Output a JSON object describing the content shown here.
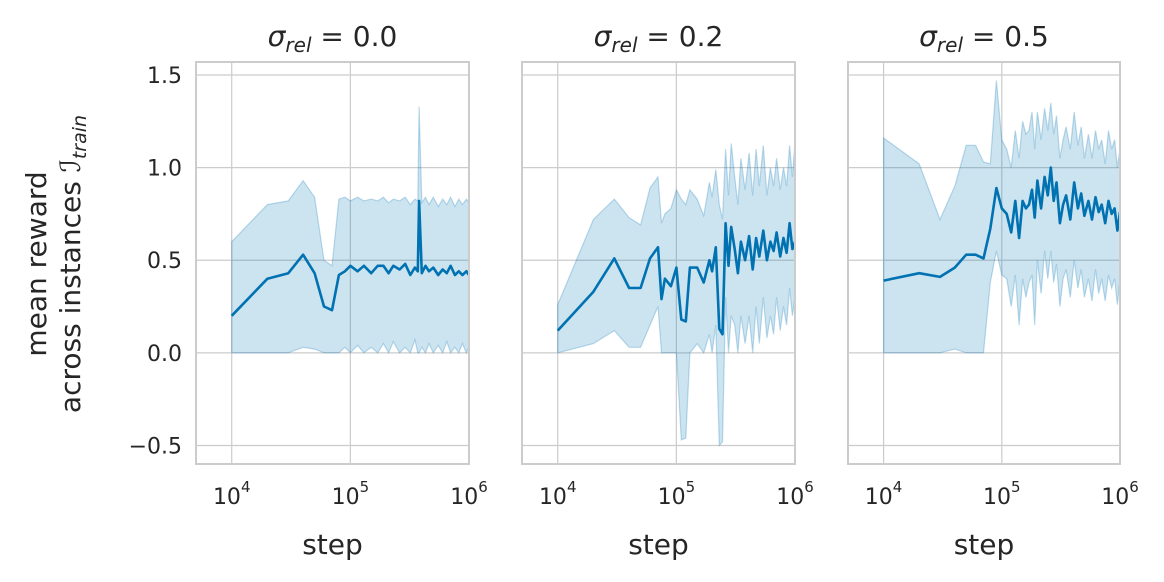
{
  "figure": {
    "ylabel_line1": "mean reward",
    "ylabel_line2_text": "across instances ",
    "ylabel_math_symbol": "ℐ",
    "ylabel_math_subscript": "train",
    "title_prefix": "σ",
    "title_subscript": "rel",
    "title_equals": " = ",
    "line_color": "#0072b2",
    "band_color": "#0072b2",
    "grid_color": "#cccccc",
    "spine_color": "#cccccc"
  },
  "chart_data": [
    {
      "type": "line",
      "title_value": "0.0",
      "xlabel": "step",
      "xscale": "log",
      "xlim": [
        5000,
        1000000
      ],
      "ylim": [
        -0.6,
        1.57
      ],
      "xticks": [
        {
          "base": "10",
          "exp": "4",
          "value": 10000
        },
        {
          "base": "10",
          "exp": "5",
          "value": 100000
        },
        {
          "base": "10",
          "exp": "6",
          "value": 1000000
        }
      ],
      "yticks": [
        {
          "label": "1.5",
          "value": 1.5
        },
        {
          "label": "1.0",
          "value": 1.0
        },
        {
          "label": "0.5",
          "value": 0.5
        },
        {
          "label": "0.0",
          "value": 0.0
        },
        {
          "label": "−0.5",
          "value": -0.5
        }
      ],
      "series": [
        {
          "x": [
            10000,
            20000,
            30000,
            40000,
            50000,
            60000,
            70000,
            80000,
            90000,
            100000,
            115000,
            130000,
            150000,
            170000,
            190000,
            210000,
            230000,
            260000,
            290000,
            320000,
            350000,
            370000,
            380000,
            400000,
            430000,
            460000,
            500000,
            550000,
            600000,
            650000,
            700000,
            760000,
            820000,
            880000,
            950000,
            1000000
          ],
          "y": [
            0.2,
            0.4,
            0.43,
            0.53,
            0.43,
            0.25,
            0.23,
            0.42,
            0.44,
            0.47,
            0.44,
            0.47,
            0.43,
            0.47,
            0.47,
            0.43,
            0.47,
            0.45,
            0.48,
            0.42,
            0.46,
            0.44,
            0.82,
            0.43,
            0.47,
            0.44,
            0.46,
            0.42,
            0.45,
            0.43,
            0.47,
            0.42,
            0.44,
            0.42,
            0.44,
            0.42
          ],
          "lower": [
            0.0,
            0.0,
            0.0,
            0.03,
            0.02,
            0.0,
            0.0,
            0.0,
            0.03,
            0.0,
            0.04,
            0.0,
            0.03,
            0.0,
            0.05,
            0.0,
            0.06,
            0.0,
            0.03,
            0.0,
            0.07,
            0.0,
            0.0,
            0.03,
            0.0,
            0.05,
            0.0,
            0.04,
            0.0,
            0.06,
            0.0,
            0.03,
            0.0,
            0.05,
            0.0,
            0.03
          ],
          "upper": [
            0.6,
            0.8,
            0.82,
            0.93,
            0.84,
            0.5,
            0.47,
            0.83,
            0.84,
            0.82,
            0.84,
            0.82,
            0.83,
            0.82,
            0.84,
            0.81,
            0.83,
            0.82,
            0.84,
            0.8,
            0.83,
            0.82,
            1.33,
            0.81,
            0.84,
            0.8,
            0.84,
            0.79,
            0.83,
            0.8,
            0.84,
            0.79,
            0.83,
            0.8,
            0.83,
            0.81
          ]
        }
      ]
    },
    {
      "type": "line",
      "title_value": "0.2",
      "xlabel": "step",
      "xscale": "log",
      "xlim": [
        5000,
        1000000
      ],
      "ylim": [
        -0.6,
        1.57
      ],
      "xticks": [
        {
          "base": "10",
          "exp": "4",
          "value": 10000
        },
        {
          "base": "10",
          "exp": "5",
          "value": 100000
        },
        {
          "base": "10",
          "exp": "6",
          "value": 1000000
        }
      ],
      "yticks": [
        {
          "label": "1.5",
          "value": 1.5
        },
        {
          "label": "1.0",
          "value": 1.0
        },
        {
          "label": "0.5",
          "value": 0.5
        },
        {
          "label": "0.0",
          "value": 0.0
        },
        {
          "label": "−0.5",
          "value": -0.5
        }
      ],
      "series": [
        {
          "x": [
            10000,
            20000,
            30000,
            40000,
            50000,
            60000,
            70000,
            75000,
            80000,
            90000,
            100000,
            110000,
            120000,
            130000,
            150000,
            170000,
            190000,
            200000,
            215000,
            230000,
            245000,
            260000,
            275000,
            290000,
            310000,
            330000,
            350000,
            380000,
            410000,
            440000,
            470000,
            500000,
            540000,
            580000,
            620000,
            660000,
            700000,
            750000,
            800000,
            850000,
            900000,
            950000,
            1000000
          ],
          "y": [
            0.12,
            0.33,
            0.51,
            0.35,
            0.35,
            0.51,
            0.57,
            0.29,
            0.4,
            0.36,
            0.46,
            0.18,
            0.17,
            0.46,
            0.46,
            0.38,
            0.5,
            0.44,
            0.57,
            0.13,
            0.1,
            0.7,
            0.47,
            0.68,
            0.56,
            0.43,
            0.6,
            0.5,
            0.63,
            0.45,
            0.62,
            0.52,
            0.66,
            0.5,
            0.6,
            0.55,
            0.65,
            0.52,
            0.62,
            0.54,
            0.7,
            0.56,
            0.6
          ],
          "lower": [
            0.0,
            0.05,
            0.12,
            0.03,
            0.03,
            0.15,
            0.25,
            0.0,
            0.0,
            0.0,
            0.0,
            -0.47,
            -0.46,
            0.0,
            0.05,
            0.0,
            0.1,
            0.0,
            0.15,
            -0.5,
            -0.48,
            0.3,
            0.0,
            0.2,
            0.15,
            0.0,
            0.2,
            0.05,
            0.2,
            0.0,
            0.25,
            0.05,
            0.3,
            0.08,
            0.2,
            0.1,
            0.3,
            0.12,
            0.25,
            0.15,
            0.35,
            0.2,
            0.3
          ],
          "upper": [
            0.26,
            0.72,
            0.83,
            0.73,
            0.69,
            0.89,
            0.95,
            0.7,
            0.75,
            0.78,
            0.88,
            0.83,
            0.8,
            0.88,
            0.83,
            0.74,
            0.92,
            0.84,
            0.99,
            0.8,
            0.72,
            1.1,
            0.85,
            1.13,
            0.95,
            0.8,
            1.05,
            0.88,
            1.08,
            0.85,
            1.1,
            0.9,
            1.12,
            0.85,
            1.0,
            0.9,
            1.05,
            0.88,
            1.0,
            0.9,
            1.12,
            0.95,
            1.14
          ]
        }
      ]
    },
    {
      "type": "line",
      "title_value": "0.5",
      "xlabel": "step",
      "xscale": "log",
      "xlim": [
        5000,
        1000000
      ],
      "ylim": [
        -0.6,
        1.57
      ],
      "xticks": [
        {
          "base": "10",
          "exp": "4",
          "value": 10000
        },
        {
          "base": "10",
          "exp": "5",
          "value": 100000
        },
        {
          "base": "10",
          "exp": "6",
          "value": 1000000
        }
      ],
      "yticks": [
        {
          "label": "1.5",
          "value": 1.5
        },
        {
          "label": "1.0",
          "value": 1.0
        },
        {
          "label": "0.5",
          "value": 0.5
        },
        {
          "label": "0.0",
          "value": 0.0
        },
        {
          "label": "−0.5",
          "value": -0.5
        }
      ],
      "series": [
        {
          "x": [
            10000,
            20000,
            30000,
            40000,
            50000,
            60000,
            70000,
            80000,
            90000,
            100000,
            110000,
            120000,
            130000,
            140000,
            150000,
            160000,
            170000,
            180000,
            190000,
            200000,
            215000,
            230000,
            245000,
            260000,
            275000,
            290000,
            310000,
            330000,
            350000,
            380000,
            410000,
            440000,
            470000,
            500000,
            540000,
            580000,
            620000,
            660000,
            700000,
            750000,
            800000,
            850000,
            900000,
            950000,
            1000000
          ],
          "y": [
            0.39,
            0.43,
            0.41,
            0.46,
            0.53,
            0.53,
            0.51,
            0.67,
            0.89,
            0.78,
            0.75,
            0.65,
            0.82,
            0.62,
            0.82,
            0.78,
            0.8,
            0.88,
            0.73,
            0.93,
            0.78,
            0.95,
            0.85,
            1.0,
            0.82,
            0.92,
            0.7,
            0.8,
            0.85,
            0.72,
            0.92,
            0.78,
            0.86,
            0.74,
            0.82,
            0.72,
            0.84,
            0.76,
            0.8,
            0.7,
            0.82,
            0.75,
            0.78,
            0.66,
            0.76
          ],
          "lower": [
            0.0,
            0.0,
            0.0,
            0.02,
            0.0,
            0.0,
            0.0,
            0.38,
            0.55,
            0.42,
            0.4,
            0.25,
            0.42,
            0.15,
            0.4,
            0.3,
            0.38,
            0.42,
            0.15,
            0.5,
            0.32,
            0.55,
            0.4,
            0.55,
            0.38,
            0.48,
            0.25,
            0.4,
            0.45,
            0.3,
            0.5,
            0.35,
            0.45,
            0.3,
            0.4,
            0.28,
            0.45,
            0.32,
            0.4,
            0.28,
            0.42,
            0.35,
            0.4,
            0.26,
            0.4
          ],
          "upper": [
            1.16,
            1.02,
            0.72,
            0.9,
            1.12,
            1.12,
            1.03,
            1.02,
            1.47,
            1.15,
            1.1,
            1.0,
            1.2,
            1.05,
            1.25,
            1.18,
            1.2,
            1.3,
            1.1,
            1.3,
            1.15,
            1.32,
            1.2,
            1.35,
            1.18,
            1.28,
            1.05,
            1.15,
            1.22,
            1.1,
            1.3,
            1.12,
            1.22,
            1.05,
            1.18,
            1.05,
            1.2,
            1.1,
            1.15,
            1.02,
            1.2,
            1.1,
            1.15,
            1.0,
            1.1
          ]
        }
      ]
    }
  ]
}
